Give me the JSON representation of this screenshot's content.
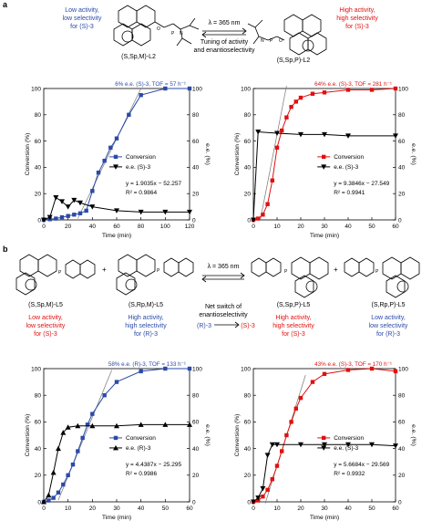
{
  "panel_a": {
    "label": "a",
    "scheme": {
      "left": {
        "line1": "Low activity,",
        "line2": "low selectivity",
        "line3": "for (S)-3",
        "compound": "(S,S",
        "compound_p": "P",
        "compound_m": "M",
        "compound_name": "-L2",
        "compound_full": "(S,Sp,M)-L2"
      },
      "right": {
        "line1": "High activity,",
        "line2": "high selectivity",
        "line3": "for (S)-3",
        "compound_full": "(S,Sp,P)-L2"
      },
      "arrow_top": "λ = 365 nm",
      "arrow_bottom1": "Tuning of activity",
      "arrow_bottom2": "and enantioselectivity"
    }
  },
  "panel_b": {
    "label": "b",
    "scheme": {
      "arrow_top": "λ = 365 nm",
      "center1": "Net switch of",
      "center2": "enantioselectivity",
      "center_left": "(R)-3",
      "center_right": "(S)-3",
      "plus": "+",
      "c1": {
        "name": "(S,Sp,M)-L5",
        "t1": "Low activity,",
        "t2": "low selectivity",
        "t3": "for (S)-3"
      },
      "c2": {
        "name": "(S,Rp,M)-L5",
        "t1": "High activity,",
        "t2": "high selectivity",
        "t3": "for (R)-3"
      },
      "c3": {
        "name": "(S,Sp,P)-L5",
        "t1": "High activity,",
        "t2": "high selectivity",
        "t3": "for (S)-3"
      },
      "c4": {
        "name": "(S,Rp,P)-L5",
        "t1": "Low activity,",
        "t2": "low selectivity",
        "t3": "for (R)-3"
      }
    }
  },
  "colors": {
    "blue": "#2b4aa8",
    "red": "#e01010",
    "black": "#000000",
    "gray": "#888888"
  },
  "chart_data": [
    {
      "id": "a-left",
      "type": "line",
      "header": "6% e.e. (S)-3, TOF = 57 h⁻¹",
      "xlabel": "Time (min)",
      "ylabel": "Conversion (%)",
      "y2label": "e.e. (%)",
      "xlim": [
        0,
        120
      ],
      "ylim": [
        0,
        100
      ],
      "y2lim": [
        0,
        100
      ],
      "xticks": [
        0,
        20,
        40,
        60,
        80,
        100,
        120
      ],
      "yticks": [
        0,
        20,
        40,
        60,
        80,
        100
      ],
      "series": [
        {
          "name": "Conversion",
          "axis": "left",
          "marker": "square",
          "color": "#2b4aa8",
          "x": [
            0,
            5,
            10,
            15,
            20,
            25,
            30,
            35,
            40,
            45,
            50,
            55,
            60,
            70,
            80,
            100,
            120
          ],
          "y": [
            0,
            0.5,
            1,
            2,
            3,
            4,
            5,
            7,
            22,
            36,
            45,
            55,
            62,
            80,
            95,
            100,
            100
          ]
        },
        {
          "name": "e.e. (S)-3",
          "axis": "right",
          "marker": "triangle-down",
          "color": "#000000",
          "x": [
            0,
            5,
            10,
            15,
            20,
            25,
            30,
            40,
            60,
            80,
            100,
            120
          ],
          "y": [
            0,
            2,
            17,
            14,
            10,
            15,
            13,
            10,
            7,
            6,
            6,
            6
          ]
        }
      ],
      "fit": {
        "label1": "y = 1.9035x − 52.257",
        "label2": "R² = 0.9864",
        "slope": 1.9035,
        "intercept": -52.257,
        "x_from": 28,
        "x_to": 80
      }
    },
    {
      "id": "a-right",
      "type": "line",
      "header": "64% e.e. (S)-3, TOF = 281 h⁻¹",
      "xlabel": "Time (min)",
      "ylabel": "Conversion (%)",
      "y2label": "e.e. (%)",
      "xlim": [
        0,
        60
      ],
      "ylim": [
        0,
        100
      ],
      "y2lim": [
        0,
        100
      ],
      "xticks": [
        0,
        10,
        20,
        30,
        40,
        50,
        60
      ],
      "yticks": [
        0,
        20,
        40,
        60,
        80,
        100
      ],
      "series": [
        {
          "name": "Conversion",
          "axis": "left",
          "marker": "square",
          "color": "#e01010",
          "x": [
            0,
            2,
            4,
            6,
            8,
            10,
            12,
            14,
            16,
            18,
            20,
            25,
            30,
            40,
            50,
            60
          ],
          "y": [
            0,
            1,
            4,
            12,
            30,
            55,
            68,
            78,
            86,
            90,
            93,
            96,
            97,
            99,
            99,
            100
          ]
        },
        {
          "name": "e.e. (S)-3",
          "axis": "right",
          "marker": "triangle-down",
          "color": "#000000",
          "x": [
            0,
            2,
            10,
            20,
            30,
            40,
            60
          ],
          "y": [
            0,
            67,
            66,
            65,
            65,
            64,
            64
          ]
        }
      ],
      "fit": {
        "label1": "y = 9.3846x − 27.549",
        "label2": "R² = 0.9941",
        "slope": 9.3846,
        "intercept": -27.549,
        "x_from": 3,
        "x_to": 14
      }
    },
    {
      "id": "b-left",
      "type": "line",
      "header": "58% e.e. (R)-3, TOF = 133 h⁻¹",
      "xlabel": "Time (min)",
      "ylabel": "Conversion (%)",
      "y2label": "e.e. (%)",
      "xlim": [
        0,
        60
      ],
      "ylim": [
        0,
        100
      ],
      "y2lim": [
        0,
        100
      ],
      "xticks": [
        0,
        10,
        20,
        30,
        40,
        50,
        60
      ],
      "yticks": [
        0,
        20,
        40,
        60,
        80,
        100
      ],
      "series": [
        {
          "name": "Conversion",
          "axis": "left",
          "marker": "square",
          "color": "#2b4aa8",
          "x": [
            0,
            2,
            4,
            6,
            8,
            10,
            12,
            14,
            16,
            18,
            20,
            25,
            30,
            40,
            50,
            60
          ],
          "y": [
            0,
            1,
            3,
            7,
            13,
            20,
            28,
            38,
            48,
            58,
            66,
            80,
            90,
            98,
            100,
            100
          ]
        },
        {
          "name": "e.e. (R)-3",
          "axis": "right",
          "marker": "triangle-up",
          "color": "#000000",
          "x": [
            0,
            2,
            4,
            6,
            8,
            10,
            14,
            20,
            30,
            40,
            50,
            60
          ],
          "y": [
            0,
            5,
            22,
            40,
            52,
            56,
            57,
            57,
            57,
            58,
            58,
            58
          ]
        }
      ],
      "fit": {
        "label1": "y = 4.4387x − 25.295",
        "label2": "R² = 0.9986",
        "slope": 4.4387,
        "intercept": -25.295,
        "x_from": 6,
        "x_to": 28
      }
    },
    {
      "id": "b-right",
      "type": "line",
      "header": "43% e.e. (S)-3, TOF = 170 h⁻¹",
      "xlabel": "Time (min)",
      "ylabel": "Conversion (%)",
      "y2label": "e.e. (%)",
      "xlim": [
        0,
        60
      ],
      "ylim": [
        0,
        100
      ],
      "y2lim": [
        0,
        100
      ],
      "xticks": [
        0,
        10,
        20,
        30,
        40,
        50,
        60
      ],
      "yticks": [
        0,
        20,
        40,
        60,
        80,
        100
      ],
      "series": [
        {
          "name": "Conversion",
          "axis": "left",
          "marker": "square",
          "color": "#e01010",
          "x": [
            0,
            2,
            4,
            6,
            8,
            10,
            12,
            14,
            16,
            18,
            20,
            25,
            30,
            40,
            50,
            60
          ],
          "y": [
            0,
            1,
            4,
            9,
            17,
            27,
            38,
            50,
            60,
            70,
            78,
            90,
            96,
            99,
            100,
            98
          ]
        },
        {
          "name": "e.e. (S)-3",
          "axis": "right",
          "marker": "triangle-down",
          "color": "#000000",
          "x": [
            0,
            2,
            4,
            6,
            8,
            10,
            20,
            30,
            40,
            50,
            60
          ],
          "y": [
            0,
            3,
            10,
            35,
            43,
            43,
            43,
            43,
            43,
            43,
            42
          ]
        }
      ],
      "fit": {
        "label1": "y = 5.6684x − 29.569",
        "label2": "R² = 0.9932",
        "slope": 5.6684,
        "intercept": -29.569,
        "x_from": 5,
        "x_to": 22
      }
    }
  ]
}
